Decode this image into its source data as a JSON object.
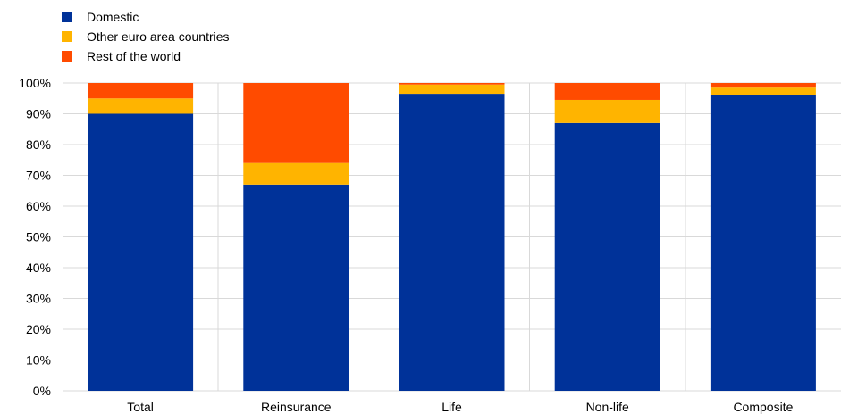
{
  "chart_data": {
    "type": "bar",
    "stacked": true,
    "categories": [
      "Total",
      "Reinsurance",
      "Life",
      "Non-life",
      "Composite"
    ],
    "series": [
      {
        "name": "Domestic",
        "color": "#003299",
        "values": [
          90,
          67,
          96.5,
          87,
          96
        ]
      },
      {
        "name": "Other euro area countries",
        "color": "#FFB400",
        "values": [
          5,
          7,
          3,
          7.5,
          2.5
        ]
      },
      {
        "name": "Rest of the world",
        "color": "#FF4B00",
        "values": [
          5,
          26,
          0.5,
          5.5,
          1.5
        ]
      }
    ],
    "ylim": [
      0,
      100
    ],
    "y_ticks": [
      "0%",
      "10%",
      "20%",
      "30%",
      "40%",
      "50%",
      "60%",
      "70%",
      "80%",
      "90%",
      "100%"
    ],
    "grid": true,
    "legend_position": "top-left"
  }
}
